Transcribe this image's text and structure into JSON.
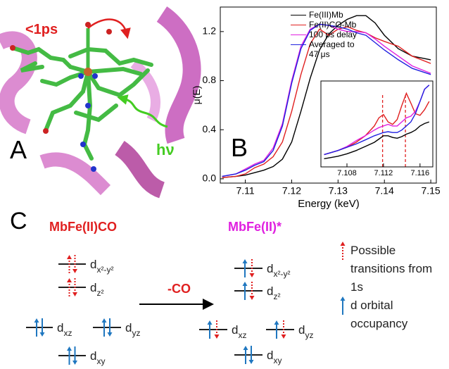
{
  "panel_a": {
    "label": "A",
    "time_label": "<1ps",
    "photon_label": "hν"
  },
  "chart_data": [
    {
      "type": "line",
      "panel_label": "B",
      "xlabel": "Energy (keV)",
      "ylabel": "μ(E)",
      "x": [
        7.105,
        7.108,
        7.11,
        7.112,
        7.114,
        7.116,
        7.118,
        7.12,
        7.122,
        7.124,
        7.126,
        7.128,
        7.13,
        7.132,
        7.134,
        7.136,
        7.138,
        7.14,
        7.143,
        7.146,
        7.15
      ],
      "series": [
        {
          "name": "Fe(III)Mb",
          "color": "#000000",
          "values": [
            0.01,
            0.02,
            0.03,
            0.05,
            0.07,
            0.1,
            0.16,
            0.3,
            0.55,
            0.82,
            1.05,
            1.18,
            1.25,
            1.3,
            1.33,
            1.33,
            1.27,
            1.17,
            1.06,
            1.0,
            0.97
          ]
        },
        {
          "name": "Fe(II)CO-Mb",
          "color": "#e02020",
          "values": [
            0.01,
            0.02,
            0.04,
            0.09,
            0.12,
            0.18,
            0.3,
            0.55,
            0.85,
            1.1,
            1.22,
            1.17,
            1.22,
            1.24,
            1.21,
            1.19,
            1.15,
            1.12,
            1.08,
            1.0,
            0.94
          ]
        },
        {
          "name": "100 ps delay",
          "color": "#e020e0",
          "values": [
            0.02,
            0.04,
            0.08,
            0.12,
            0.15,
            0.25,
            0.45,
            0.8,
            1.08,
            1.22,
            1.26,
            1.25,
            1.22,
            1.2,
            1.2,
            1.19,
            1.14,
            1.08,
            1.0,
            0.92,
            0.86
          ]
        },
        {
          "name": "Averaged to 47 μs",
          "color": "#2020e0",
          "values": [
            0.02,
            0.04,
            0.07,
            0.11,
            0.14,
            0.23,
            0.43,
            0.78,
            1.06,
            1.21,
            1.26,
            1.25,
            1.24,
            1.22,
            1.19,
            1.17,
            1.11,
            1.05,
            0.97,
            0.9,
            0.85
          ]
        }
      ],
      "xlim": [
        7.1046,
        7.1512
      ],
      "ylim": [
        -0.035,
        1.4
      ],
      "xticks": [
        7.11,
        7.12,
        7.13,
        7.14,
        7.15
      ],
      "yticks": [
        {
          "value": 0,
          "label": "0.0"
        },
        0.4,
        0.8,
        1.2
      ]
    },
    {
      "type": "line",
      "x": [
        7.1055,
        7.107,
        7.108,
        7.109,
        7.11,
        7.111,
        7.1115,
        7.112,
        7.1125,
        7.113,
        7.1135,
        7.114,
        7.1145,
        7.115,
        7.1155,
        7.116,
        7.1165,
        7.117
      ],
      "series": [
        {
          "color": "#000000",
          "values": [
            0.1,
            0.13,
            0.16,
            0.2,
            0.25,
            0.3,
            0.34,
            0.38,
            0.38,
            0.36,
            0.35,
            0.37,
            0.4,
            0.42,
            0.45,
            0.5,
            0.53,
            0.55
          ]
        },
        {
          "color": "#e02020",
          "values": [
            0.15,
            0.2,
            0.24,
            0.3,
            0.38,
            0.5,
            0.6,
            0.64,
            0.55,
            0.52,
            0.58,
            0.75,
            0.9,
            0.78,
            0.65,
            0.63,
            0.7,
            0.8
          ]
        },
        {
          "color": "#e020e0",
          "values": [
            0.15,
            0.2,
            0.25,
            0.32,
            0.38,
            0.45,
            0.48,
            0.5,
            0.52,
            0.5,
            0.5,
            0.55,
            0.6,
            0.62,
            0.68,
            0.8,
            0.95,
            1.0
          ]
        },
        {
          "color": "#2020e0",
          "values": [
            0.15,
            0.2,
            0.24,
            0.28,
            0.33,
            0.38,
            0.4,
            0.42,
            0.43,
            0.42,
            0.42,
            0.45,
            0.5,
            0.55,
            0.65,
            0.8,
            0.95,
            1.0
          ]
        }
      ],
      "xlim": [
        7.10515,
        7.1174
      ],
      "ylim": [
        0,
        1.05
      ],
      "xticks": [
        7.108,
        7.112,
        7.116
      ],
      "vlines": [
        7.1119,
        7.1144
      ],
      "vline_color": "#e02020"
    }
  ],
  "panel_c": {
    "label": "C",
    "left_title": "MbFe(II)CO",
    "right_title": "MbFe(II)*",
    "arrow_label": "-CO",
    "left_orbitals": [
      {
        "symbol": "d",
        "sub": "x²-y²"
      },
      {
        "symbol": "d",
        "sub": "z²"
      },
      {
        "symbol": "d",
        "sub": "xz"
      },
      {
        "symbol": "d",
        "sub": "yz"
      },
      {
        "symbol": "d",
        "sub": "xy"
      }
    ],
    "right_orbitals": [
      {
        "symbol": "d",
        "sub": "x²-y²"
      },
      {
        "symbol": "d",
        "sub": "z²"
      },
      {
        "symbol": "d",
        "sub": "xz"
      },
      {
        "symbol": "d",
        "sub": "yz"
      },
      {
        "symbol": "d",
        "sub": "xy"
      }
    ],
    "legend": [
      "Possible transitions from 1s",
      "d orbital occupancy"
    ]
  }
}
